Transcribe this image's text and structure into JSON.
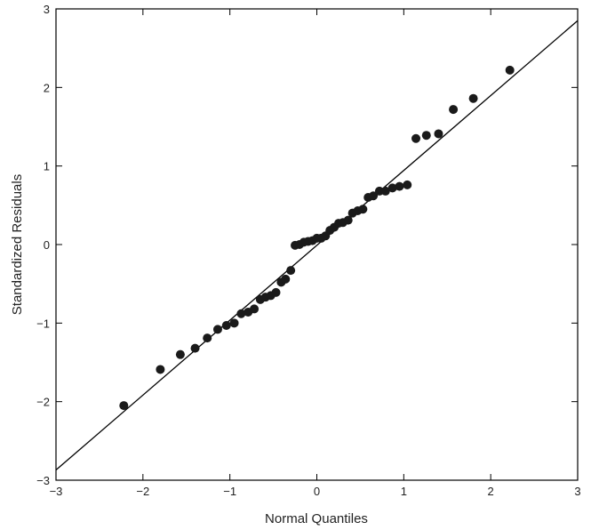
{
  "chart_data": {
    "type": "scatter",
    "title": "",
    "xlabel": "Normal Quantiles",
    "ylabel": "Standardized Residuals",
    "xlim": [
      -3,
      3
    ],
    "ylim": [
      -3,
      3
    ],
    "xticks": [
      -3,
      -2,
      -1,
      0,
      1,
      2,
      3
    ],
    "yticks": [
      -3,
      -2,
      -1,
      0,
      1,
      2,
      3
    ],
    "xtick_labels": [
      "−3",
      "−2",
      "−1",
      "0",
      "1",
      "2",
      "3"
    ],
    "ytick_labels": [
      "−3",
      "−2",
      "−1",
      "0",
      "1",
      "2",
      "3"
    ],
    "grid": false,
    "reference_line": {
      "x": [
        -3,
        3
      ],
      "y": [
        -2.87,
        2.85
      ]
    },
    "points": [
      {
        "x": -2.22,
        "y": -2.05
      },
      {
        "x": -1.8,
        "y": -1.59
      },
      {
        "x": -1.57,
        "y": -1.4
      },
      {
        "x": -1.4,
        "y": -1.32
      },
      {
        "x": -1.26,
        "y": -1.19
      },
      {
        "x": -1.14,
        "y": -1.08
      },
      {
        "x": -1.04,
        "y": -1.03
      },
      {
        "x": -0.95,
        "y": -1.0
      },
      {
        "x": -0.87,
        "y": -0.88
      },
      {
        "x": -0.79,
        "y": -0.86
      },
      {
        "x": -0.72,
        "y": -0.82
      },
      {
        "x": -0.65,
        "y": -0.7
      },
      {
        "x": -0.59,
        "y": -0.67
      },
      {
        "x": -0.53,
        "y": -0.65
      },
      {
        "x": -0.47,
        "y": -0.61
      },
      {
        "x": -0.41,
        "y": -0.48
      },
      {
        "x": -0.36,
        "y": -0.44
      },
      {
        "x": -0.3,
        "y": -0.33
      },
      {
        "x": -0.25,
        "y": -0.01
      },
      {
        "x": -0.2,
        "y": 0.0
      },
      {
        "x": -0.15,
        "y": 0.03
      },
      {
        "x": -0.1,
        "y": 0.04
      },
      {
        "x": -0.05,
        "y": 0.05
      },
      {
        "x": 0.0,
        "y": 0.08
      },
      {
        "x": 0.05,
        "y": 0.08
      },
      {
        "x": 0.1,
        "y": 0.11
      },
      {
        "x": 0.15,
        "y": 0.18
      },
      {
        "x": 0.2,
        "y": 0.22
      },
      {
        "x": 0.25,
        "y": 0.27
      },
      {
        "x": 0.3,
        "y": 0.28
      },
      {
        "x": 0.36,
        "y": 0.31
      },
      {
        "x": 0.41,
        "y": 0.4
      },
      {
        "x": 0.47,
        "y": 0.43
      },
      {
        "x": 0.53,
        "y": 0.45
      },
      {
        "x": 0.59,
        "y": 0.6
      },
      {
        "x": 0.65,
        "y": 0.62
      },
      {
        "x": 0.72,
        "y": 0.68
      },
      {
        "x": 0.79,
        "y": 0.68
      },
      {
        "x": 0.87,
        "y": 0.72
      },
      {
        "x": 0.95,
        "y": 0.74
      },
      {
        "x": 1.04,
        "y": 0.76
      },
      {
        "x": 1.14,
        "y": 1.35
      },
      {
        "x": 1.26,
        "y": 1.39
      },
      {
        "x": 1.4,
        "y": 1.41
      },
      {
        "x": 1.57,
        "y": 1.72
      },
      {
        "x": 1.8,
        "y": 1.86
      },
      {
        "x": 2.22,
        "y": 2.22
      }
    ]
  }
}
